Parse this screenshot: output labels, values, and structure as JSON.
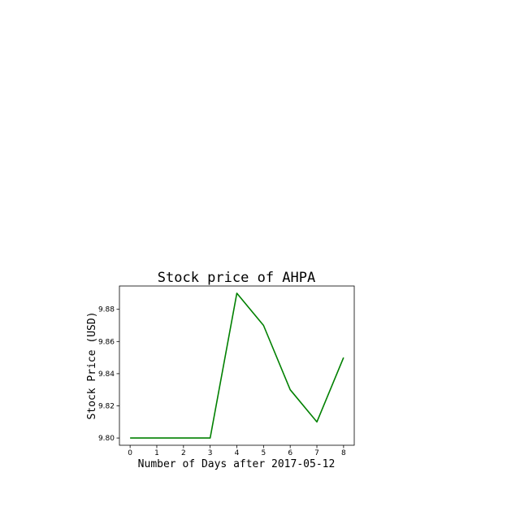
{
  "chart_data": {
    "type": "line",
    "title": "Stock price of AHPA",
    "xlabel": "Number of Days after 2017-05-12",
    "ylabel": "Stock Price (USD)",
    "x": [
      0,
      1,
      2,
      3,
      4,
      5,
      6,
      7,
      8
    ],
    "series": [
      {
        "values": [
          9.8,
          9.8,
          9.8,
          9.8,
          9.89,
          9.87,
          9.83,
          9.81,
          9.85
        ],
        "color": "#008000"
      }
    ],
    "xticks": [
      "0",
      "1",
      "2",
      "3",
      "4",
      "5",
      "6",
      "7",
      "8"
    ],
    "yticks": [
      "9.80",
      "9.82",
      "9.84",
      "9.86",
      "9.88"
    ],
    "xlim": [
      -0.4,
      8.4
    ],
    "ylim": [
      9.7955,
      9.8945
    ],
    "grid": false,
    "legend": "none"
  }
}
